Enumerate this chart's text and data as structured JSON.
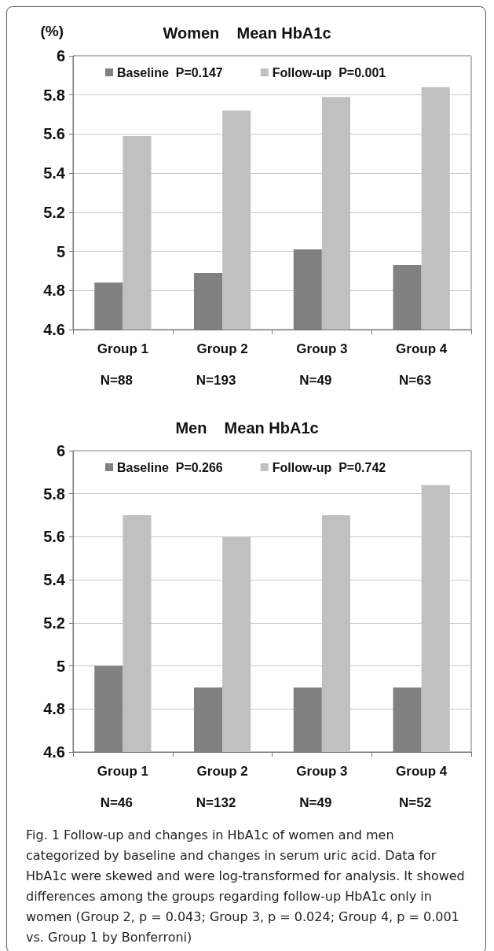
{
  "chart_data": [
    {
      "type": "bar",
      "title": "Women    Mean HbA1c",
      "ylabel": "(%)",
      "categories": [
        "Group 1",
        "Group 2",
        "Group 3",
        "Group 4"
      ],
      "series": [
        {
          "name": "Baseline  P=0.147",
          "color": "#808080",
          "values": [
            4.84,
            4.89,
            5.01,
            4.93
          ]
        },
        {
          "name": "Follow-up  P=0.001",
          "color": "#c0c0c0",
          "values": [
            5.59,
            5.72,
            5.79,
            5.84
          ]
        }
      ],
      "ylim": [
        4.6,
        6
      ],
      "yticks": [
        4.6,
        4.8,
        5,
        5.2,
        5.4,
        5.6,
        5.8,
        6
      ],
      "grid": "y",
      "legend": "top",
      "annotations": [
        "N=88",
        "N=193",
        "N=49",
        "N=63"
      ]
    },
    {
      "type": "bar",
      "title": "Men    Mean HbA1c",
      "categories": [
        "Group 1",
        "Group 2",
        "Group 3",
        "Group 4"
      ],
      "series": [
        {
          "name": "Baseline  P=0.266",
          "color": "#808080",
          "values": [
            5.0,
            4.9,
            4.9,
            4.9
          ]
        },
        {
          "name": "Follow-up  P=0.742",
          "color": "#c0c0c0",
          "values": [
            5.7,
            5.6,
            5.7,
            5.84
          ]
        }
      ],
      "ylim": [
        4.6,
        6
      ],
      "yticks": [
        4.6,
        4.8,
        5,
        5.2,
        5.4,
        5.6,
        5.8,
        6
      ],
      "grid": "y",
      "legend": "top",
      "annotations": [
        "N=46",
        "N=132",
        "N=49",
        "N=52",
        "Fig. 1  Follow-up and changes in HbA1c of women and men categorized by baseline and changes in serum uric acid. Data for HbA1c were skewed and were log-transformed for analysis. It showed differences among the groups regarding follow-up HbA1c only in women (Group 2, p = 0.043; Group 3, p = 0.024; Group 4, p = 0.001 vs. Group 1 by Bonferroni)"
      ]
    }
  ]
}
